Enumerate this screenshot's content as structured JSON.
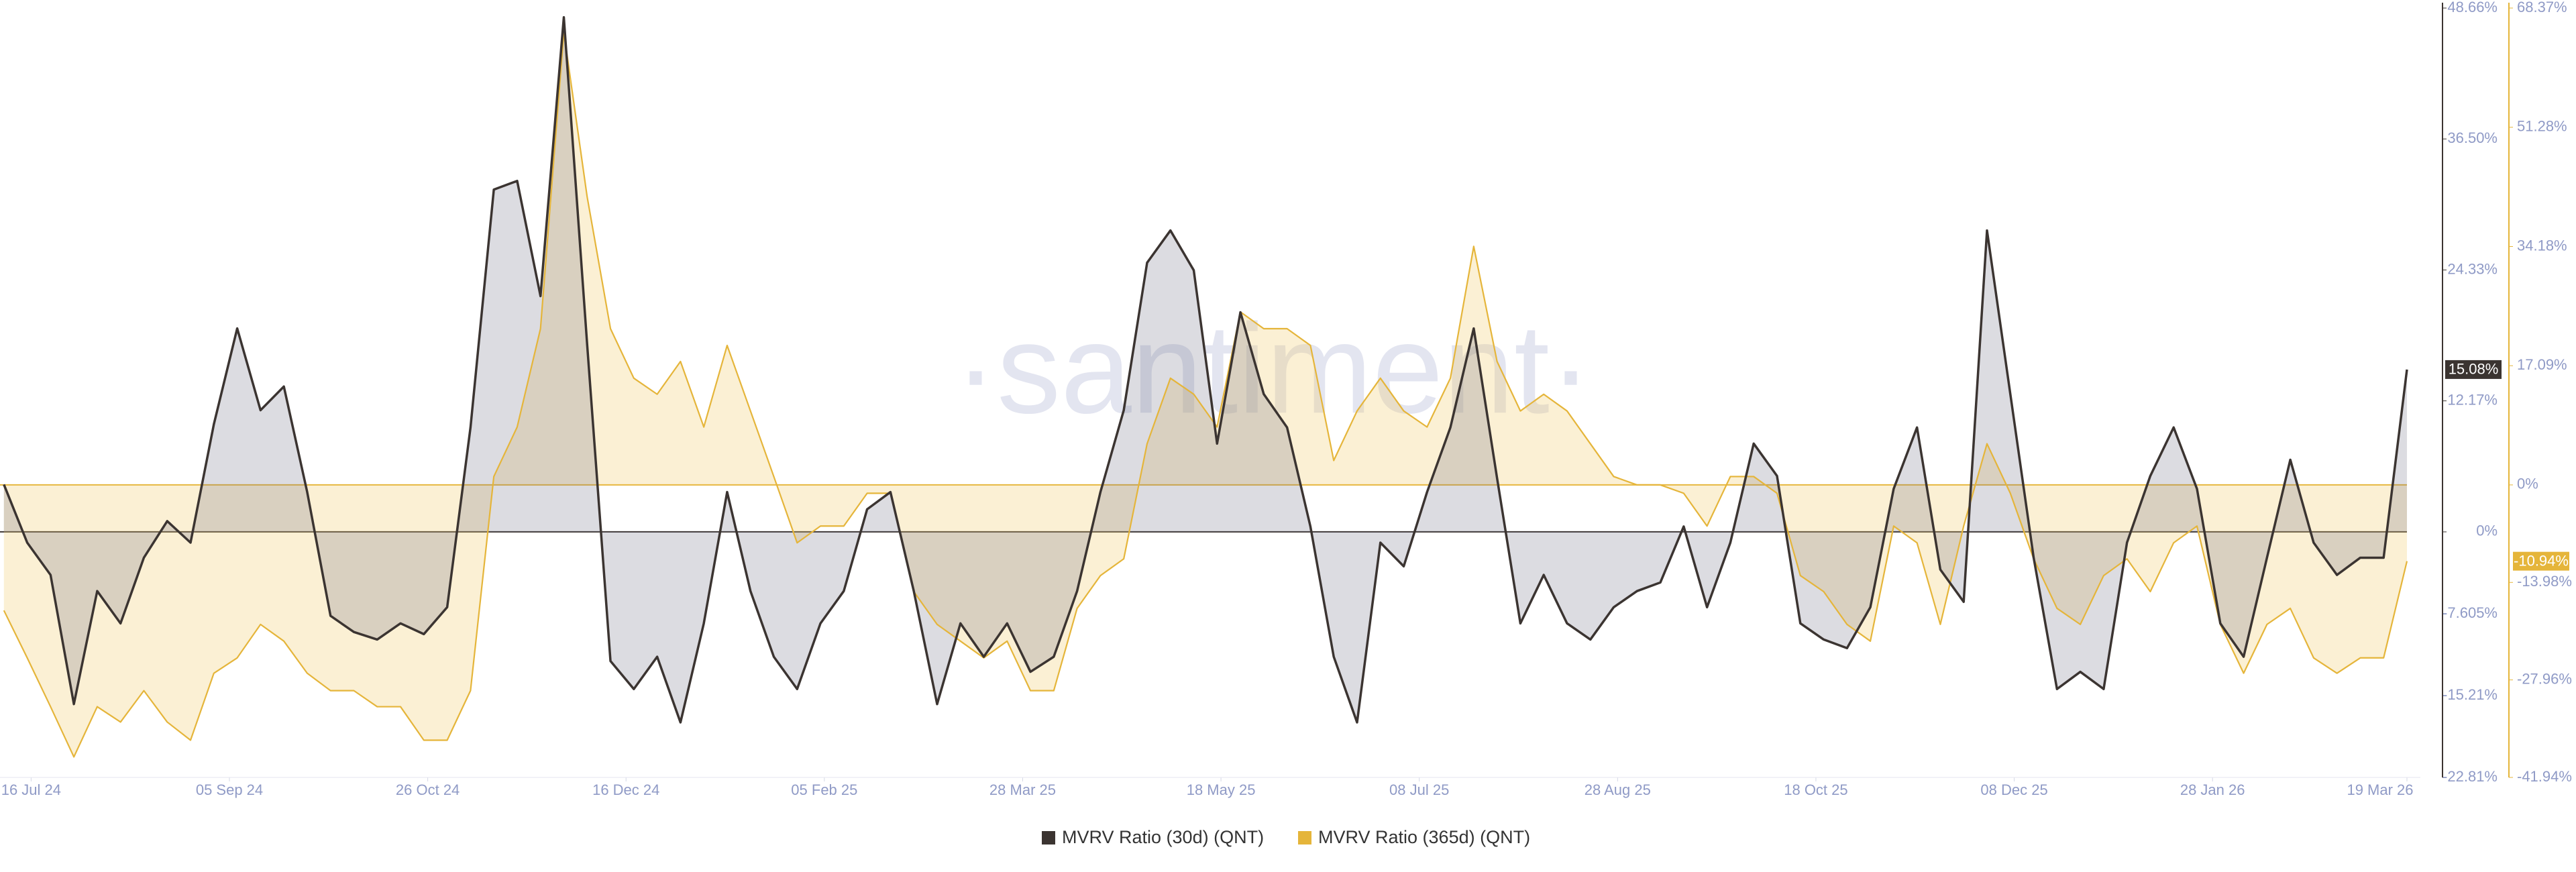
{
  "chart_data": {
    "type": "line",
    "watermark": "·santiment·",
    "x": [
      "2024-07-09",
      "2024-07-15",
      "2024-07-21",
      "2024-07-27",
      "2024-08-02",
      "2024-08-08",
      "2024-08-14",
      "2024-08-20",
      "2024-08-26",
      "2024-09-01",
      "2024-09-07",
      "2024-09-13",
      "2024-09-19",
      "2024-09-25",
      "2024-10-01",
      "2024-10-07",
      "2024-10-13",
      "2024-10-19",
      "2024-10-25",
      "2024-10-31",
      "2024-11-06",
      "2024-11-12",
      "2024-11-18",
      "2024-11-24",
      "2024-11-30",
      "2024-12-06",
      "2024-12-12",
      "2024-12-18",
      "2024-12-24",
      "2024-12-30",
      "2025-01-05",
      "2025-01-11",
      "2025-01-17",
      "2025-01-23",
      "2025-01-29",
      "2025-02-04",
      "2025-02-10",
      "2025-02-16",
      "2025-02-22",
      "2025-02-28",
      "2025-03-06",
      "2025-03-12",
      "2025-03-18",
      "2025-03-24",
      "2025-03-30",
      "2025-04-05",
      "2025-04-11",
      "2025-04-17",
      "2025-04-23",
      "2025-04-29",
      "2025-05-05",
      "2025-05-11",
      "2025-05-17",
      "2025-05-23",
      "2025-05-29",
      "2025-06-04",
      "2025-06-10",
      "2025-06-16",
      "2025-06-22",
      "2025-06-28",
      "2025-07-04",
      "2025-07-10",
      "2025-07-16",
      "2025-07-22",
      "2025-07-28",
      "2025-08-03",
      "2025-08-09",
      "2025-08-15",
      "2025-08-21",
      "2025-08-27",
      "2025-09-02",
      "2025-09-08",
      "2025-09-14",
      "2025-09-20",
      "2025-09-26",
      "2025-10-02",
      "2025-10-08",
      "2025-10-14",
      "2025-10-20",
      "2025-10-26",
      "2025-11-01",
      "2025-11-07",
      "2025-11-13",
      "2025-11-19",
      "2025-11-25",
      "2025-12-01",
      "2025-12-07",
      "2025-12-13",
      "2025-12-19",
      "2025-12-25",
      "2025-12-31",
      "2026-01-06",
      "2026-01-12",
      "2026-01-18",
      "2026-01-24",
      "2026-01-30",
      "2026-02-05",
      "2026-02-11",
      "2026-02-17",
      "2026-02-23",
      "2026-03-01",
      "2026-03-07",
      "2026-03-13",
      "2026-03-19"
    ],
    "xlim": [
      "2024-07-08",
      "2026-03-19"
    ],
    "xticks": [
      {
        "value": "2024-07-16",
        "label": "16 Jul 24"
      },
      {
        "value": "2024-09-05",
        "label": "05 Sep 24"
      },
      {
        "value": "2024-10-26",
        "label": "26 Oct 24"
      },
      {
        "value": "2024-12-16",
        "label": "16 Dec 24"
      },
      {
        "value": "2025-02-05",
        "label": "05 Feb 25"
      },
      {
        "value": "2025-03-28",
        "label": "28 Mar 25"
      },
      {
        "value": "2025-05-18",
        "label": "18 May 25"
      },
      {
        "value": "2025-07-08",
        "label": "08 Jul 25"
      },
      {
        "value": "2025-08-28",
        "label": "28 Aug 25"
      },
      {
        "value": "2025-10-18",
        "label": "18 Oct 25"
      },
      {
        "value": "2025-12-08",
        "label": "08 Dec 25"
      },
      {
        "value": "2026-01-28",
        "label": "28 Jan 26"
      },
      {
        "value": "2026-03-19",
        "label": "19 Mar 26"
      }
    ],
    "ylim": [
      -22.81,
      48.66
    ],
    "yticks": [
      {
        "value": -22.81,
        "label": "-22.81%"
      },
      {
        "value": -15.21,
        "label": "-15.21%"
      },
      {
        "value": -7.605,
        "label": "-7.605%"
      },
      {
        "value": 0,
        "label": "0%"
      },
      {
        "value": 12.17,
        "label": "12.17%"
      },
      {
        "value": 24.33,
        "label": "24.33%"
      },
      {
        "value": 36.5,
        "label": "36.50%"
      },
      {
        "value": 48.66,
        "label": "48.66%"
      }
    ],
    "y2lim": [
      -41.94,
      68.37
    ],
    "y2ticks": [
      {
        "value": -41.94,
        "label": "-41.94%"
      },
      {
        "value": -27.96,
        "label": "-27.96%"
      },
      {
        "value": -13.98,
        "label": "-13.98%"
      },
      {
        "value": 0,
        "label": "0%"
      },
      {
        "value": 17.09,
        "label": "17.09%"
      },
      {
        "value": 34.18,
        "label": "34.18%"
      },
      {
        "value": 51.28,
        "label": "51.28%"
      },
      {
        "value": 68.37,
        "label": "68.37%"
      }
    ],
    "zero_line": true,
    "series": [
      {
        "name": "MVRV Ratio (30d) (QNT)",
        "color": "#3b3431",
        "fill": "rgba(110,108,130,0.24)",
        "axis": "y",
        "current_label": "15.08%",
        "values": [
          4.4,
          -1,
          -4,
          -16,
          -5.5,
          -8.5,
          -2.4,
          1,
          -1,
          10,
          18.9,
          11.3,
          13.5,
          3.7,
          -7.8,
          -9.3,
          -10,
          -8.5,
          -9.5,
          -7,
          9.7,
          31.8,
          32.6,
          21.9,
          47.8,
          17.4,
          -12,
          -14.6,
          -11.6,
          -17.7,
          -8.5,
          3.7,
          -5.5,
          -11.6,
          -14.6,
          -8.5,
          -5.5,
          2.1,
          3.7,
          -5.5,
          -16,
          -8.5,
          -11.6,
          -8.5,
          -13,
          -11.6,
          -5.5,
          3.7,
          11.3,
          25,
          28,
          24.3,
          8.2,
          20.4,
          12.8,
          9.7,
          0.5,
          -11.6,
          -17.7,
          -1,
          -3.2,
          3.7,
          9.7,
          18.9,
          5,
          -8.5,
          -4,
          -8.5,
          -10,
          -7,
          -5.5,
          -4.7,
          0.5,
          -7,
          -1,
          8.2,
          5.2,
          -8.5,
          -10,
          -10.8,
          -7,
          4,
          9.7,
          -3.5,
          -6.5,
          28,
          12.8,
          -2.4,
          -14.6,
          -13,
          -14.6,
          -1,
          5.2,
          9.7,
          4,
          -8.5,
          -11.6,
          -2.4,
          6.7,
          -1,
          -4,
          -2.4,
          -2.4,
          15.08
        ]
      },
      {
        "name": "MVRV Ratio (365d) (QNT)",
        "color": "#e5b53a",
        "fill": "rgba(240,200,100,0.28)",
        "axis": "y2",
        "current_label": "-10.94%",
        "values": [
          -18,
          -24.8,
          -31.8,
          -39,
          -31.8,
          -34,
          -29.5,
          -34,
          -36.6,
          -27,
          -24.8,
          -20,
          -22.4,
          -27,
          -29.5,
          -29.5,
          -31.8,
          -31.8,
          -36.6,
          -36.6,
          -29.5,
          1.2,
          8.3,
          22.4,
          64.9,
          41.3,
          22.4,
          15.3,
          13,
          17.7,
          8.3,
          20,
          10.6,
          1.2,
          -8.3,
          -5.9,
          -5.9,
          -1.2,
          -1.2,
          -15.3,
          -20,
          -22.4,
          -24.8,
          -22.4,
          -29.5,
          -29.5,
          -17.7,
          -13,
          -10.6,
          5.9,
          15.3,
          13,
          8.3,
          24.8,
          22.4,
          22.4,
          20,
          3.5,
          10.6,
          15.3,
          10.6,
          8.3,
          15.3,
          34.2,
          17.7,
          10.6,
          13,
          10.6,
          5.9,
          1.2,
          0,
          0,
          -1.2,
          -5.9,
          1.2,
          1.2,
          -1.2,
          -13,
          -15.3,
          -20,
          -22.4,
          -5.9,
          -8.3,
          -20,
          -5.9,
          5.9,
          -1.2,
          -10.6,
          -17.7,
          -20,
          -13,
          -10.6,
          -15.3,
          -8.3,
          -5.9,
          -20,
          -27,
          -20,
          -17.7,
          -24.8,
          -27,
          -24.8,
          -24.8,
          -10.94
        ]
      }
    ]
  }
}
